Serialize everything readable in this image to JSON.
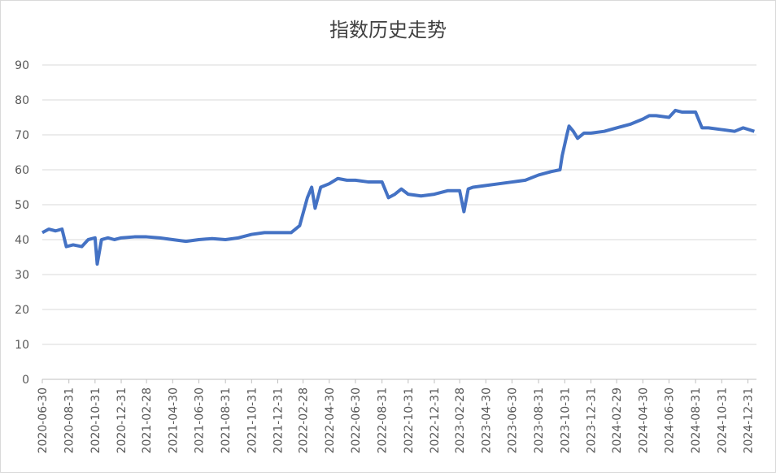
{
  "chart_data": {
    "type": "line",
    "title": "指数历史走势",
    "x": [
      "2020-06-30",
      "2020-07-15",
      "2020-07-31",
      "2020-08-15",
      "2020-08-25",
      "2020-09-10",
      "2020-09-30",
      "2020-10-15",
      "2020-10-31",
      "2020-11-05",
      "2020-11-15",
      "2020-11-30",
      "2020-12-15",
      "2020-12-31",
      "2021-01-31",
      "2021-02-28",
      "2021-03-31",
      "2021-04-30",
      "2021-05-31",
      "2021-06-30",
      "2021-07-31",
      "2021-08-31",
      "2021-09-30",
      "2021-10-31",
      "2021-11-30",
      "2021-12-31",
      "2022-01-31",
      "2022-02-20",
      "2022-03-10",
      "2022-03-20",
      "2022-03-28",
      "2022-04-10",
      "2022-04-30",
      "2022-05-20",
      "2022-06-10",
      "2022-06-30",
      "2022-07-31",
      "2022-08-31",
      "2022-09-15",
      "2022-09-30",
      "2022-10-15",
      "2022-10-31",
      "2022-11-30",
      "2022-12-31",
      "2023-01-31",
      "2023-02-28",
      "2023-03-10",
      "2023-03-20",
      "2023-03-31",
      "2023-04-30",
      "2023-05-31",
      "2023-06-30",
      "2023-07-31",
      "2023-08-31",
      "2023-09-30",
      "2023-10-20",
      "2023-10-25",
      "2023-11-05",
      "2023-11-10",
      "2023-11-20",
      "2023-11-30",
      "2023-12-15",
      "2023-12-31",
      "2024-01-31",
      "2024-02-29",
      "2024-03-31",
      "2024-04-30",
      "2024-05-15",
      "2024-05-31",
      "2024-06-30",
      "2024-07-15",
      "2024-07-31",
      "2024-08-31",
      "2024-09-15",
      "2024-09-30",
      "2024-10-31",
      "2024-11-30",
      "2024-12-20",
      "2025-01-15"
    ],
    "series": [
      {
        "color": "#4472c4",
        "values": [
          42,
          43,
          42.5,
          43,
          38,
          38.5,
          38,
          40,
          40.5,
          33,
          40,
          40.5,
          40,
          40.5,
          40.8,
          40.8,
          40.5,
          40,
          39.5,
          40,
          40.3,
          40,
          40.5,
          41.5,
          42,
          42,
          42,
          44,
          52,
          55,
          49,
          55,
          56,
          57.5,
          57,
          57,
          56.5,
          56.5,
          52,
          53,
          54.5,
          53,
          52.5,
          53,
          54,
          54,
          48,
          54.5,
          55,
          55.5,
          56,
          56.5,
          57,
          58.5,
          59.5,
          60,
          64,
          70,
          72.5,
          71,
          69,
          70.5,
          70.5,
          71,
          72,
          73,
          74.5,
          75.5,
          75.5,
          75,
          77,
          76.5,
          76.5,
          72,
          72,
          71.5,
          71,
          72,
          71
        ]
      }
    ],
    "xlim": [
      "2020-06-30",
      "2025-01-20"
    ],
    "xticks": [
      "2020-06-30",
      "2020-08-31",
      "2020-10-31",
      "2020-12-31",
      "2021-02-28",
      "2021-04-30",
      "2021-06-30",
      "2021-08-31",
      "2021-10-31",
      "2021-12-31",
      "2022-02-28",
      "2022-04-30",
      "2022-06-30",
      "2022-08-31",
      "2022-10-31",
      "2022-12-31",
      "2023-02-28",
      "2023-04-30",
      "2023-06-30",
      "2023-08-31",
      "2023-10-31",
      "2023-12-31",
      "2024-02-29",
      "2024-04-30",
      "2024-06-30",
      "2024-08-31",
      "2024-10-31",
      "2024-12-31"
    ],
    "ylim": [
      0,
      90
    ],
    "yticks": [
      0,
      10,
      20,
      30,
      40,
      50,
      60,
      70,
      80,
      90
    ],
    "grid": true
  }
}
